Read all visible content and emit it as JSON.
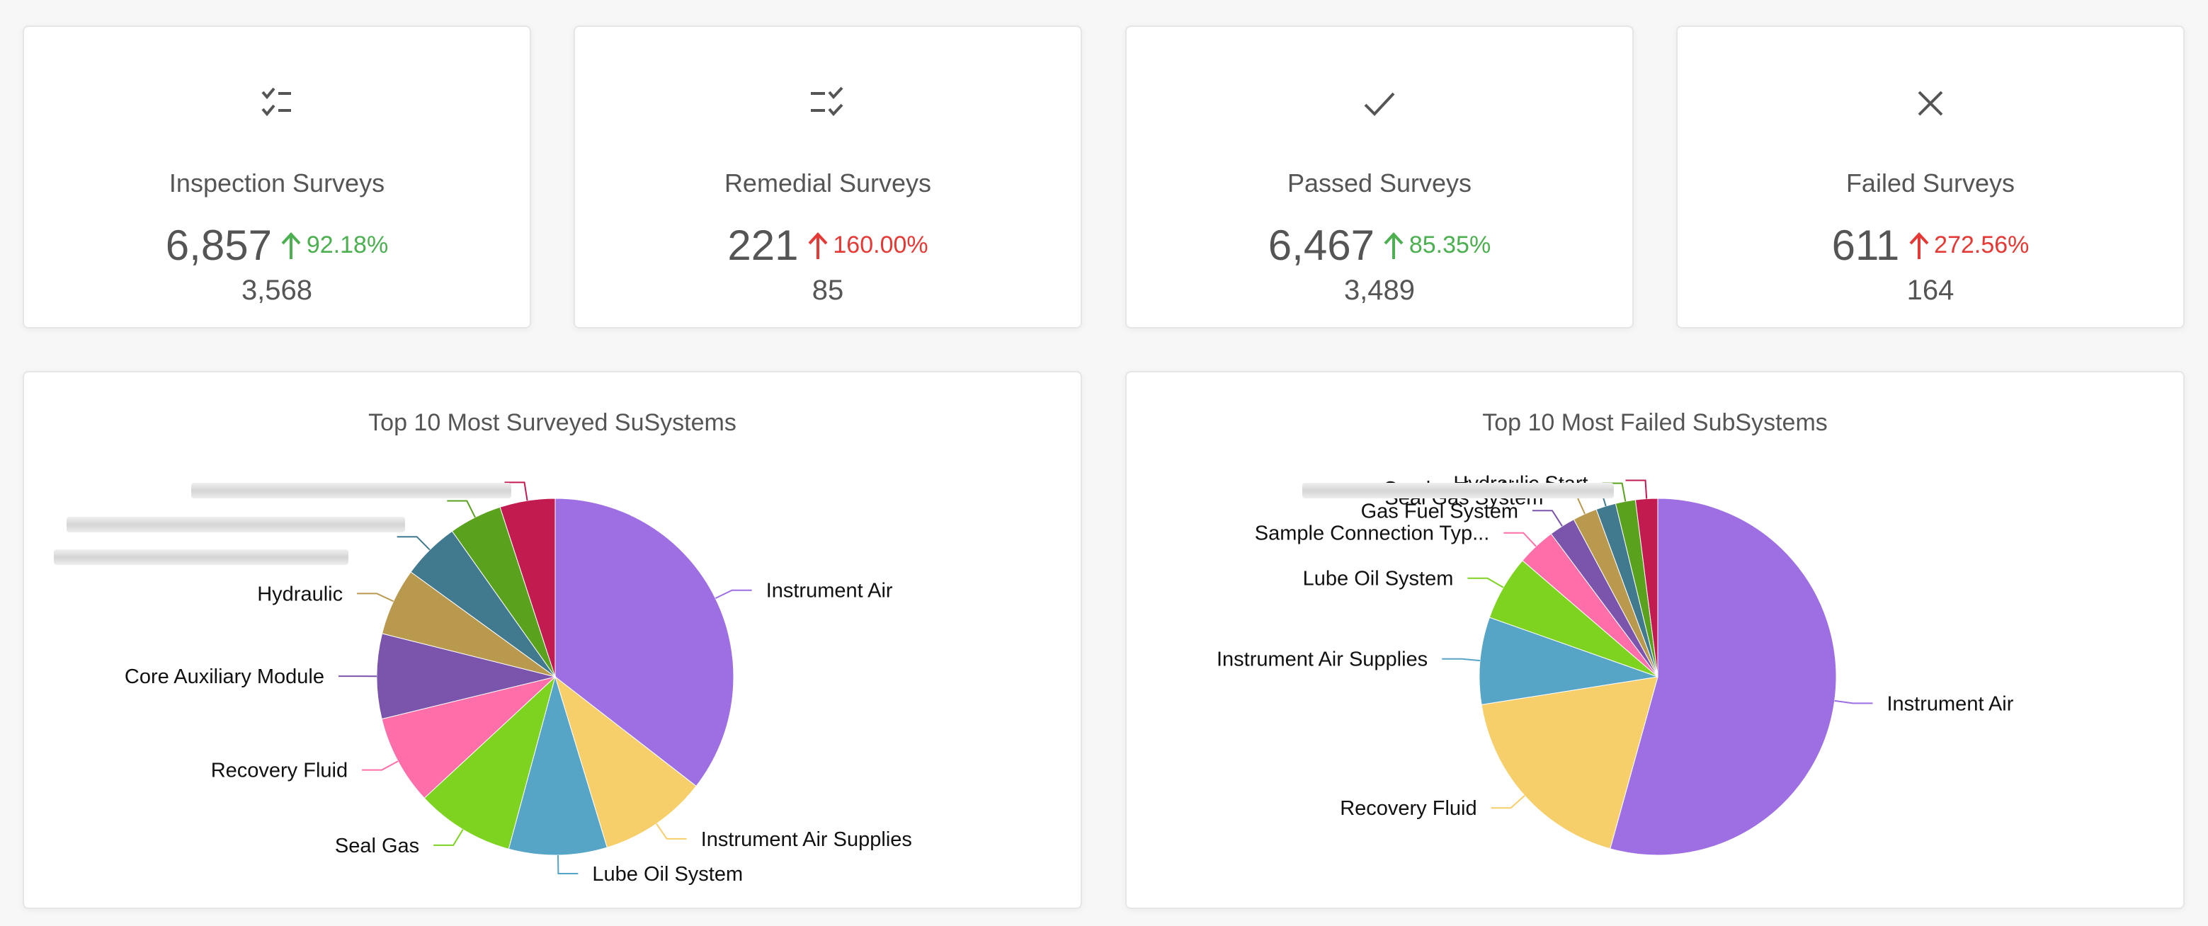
{
  "stats": [
    {
      "id": "inspection",
      "title": "Inspection Surveys",
      "value": "6,857",
      "change": "92.18%",
      "previous": "3,568",
      "trend": "up",
      "trend_color": "#4caf50",
      "icon": "checklist-icon"
    },
    {
      "id": "remedial",
      "title": "Remedial Surveys",
      "value": "221",
      "change": "160.00%",
      "previous": "85",
      "trend": "up",
      "trend_color": "#e53935",
      "icon": "list-check-icon"
    },
    {
      "id": "passed",
      "title": "Passed Surveys",
      "value": "6,467",
      "change": "85.35%",
      "previous": "3,489",
      "trend": "up",
      "trend_color": "#4caf50",
      "icon": "check-icon"
    },
    {
      "id": "failed",
      "title": "Failed Surveys",
      "value": "611",
      "change": "272.56%",
      "previous": "164",
      "trend": "up",
      "trend_color": "#e53935",
      "icon": "close-icon"
    }
  ],
  "chart_data": [
    {
      "type": "pie",
      "title": "Top 10 Most Surveyed SuSystems",
      "slices": [
        {
          "label": "Instrument Air",
          "value": 35.5,
          "color": "#9e6fe3"
        },
        {
          "label": "Instrument Air Supplies",
          "value": 9.8,
          "color": "#f6cf6b"
        },
        {
          "label": "Lube Oil System",
          "value": 8.9,
          "color": "#56a4c6"
        },
        {
          "label": "Seal Gas",
          "value": 8.9,
          "color": "#7ed321"
        },
        {
          "label": "Recovery Fluid",
          "value": 8.1,
          "color": "#fe6ea8"
        },
        {
          "label": "Core Auxiliary Module",
          "value": 7.7,
          "color": "#7b55ab"
        },
        {
          "label": "Hydraulic",
          "value": 6.1,
          "color": "#b9994e"
        },
        {
          "label": "",
          "value": 5.2,
          "color": "#41798f"
        },
        {
          "label": "",
          "value": 4.8,
          "color": "#5aa11e"
        },
        {
          "label": "",
          "value": 5.0,
          "color": "#c21b4f"
        }
      ]
    },
    {
      "type": "pie",
      "title": "Top 10 Most Failed SubSystems",
      "slices": [
        {
          "label": "Instrument Air",
          "value": 54.3,
          "color": "#9e6fe3"
        },
        {
          "label": "Recovery Fluid",
          "value": 18.2,
          "color": "#f6cf6b"
        },
        {
          "label": "Instrument Air Supplies",
          "value": 7.9,
          "color": "#56a4c6"
        },
        {
          "label": "Lube Oil System",
          "value": 5.9,
          "color": "#7ed321"
        },
        {
          "label": "Sample Connection Typ...",
          "value": 3.5,
          "color": "#fe6ea8"
        },
        {
          "label": "Gas Fuel System",
          "value": 2.4,
          "color": "#7b55ab"
        },
        {
          "label": "Seal Gas System",
          "value": 2.2,
          "color": "#b9994e"
        },
        {
          "label": "Combustion Air Inlet",
          "value": 1.8,
          "color": "#41798f"
        },
        {
          "label": "Hydraulic Start",
          "value": 1.8,
          "color": "#5aa11e"
        },
        {
          "label": "",
          "value": 2.0,
          "color": "#c21b4f"
        }
      ]
    }
  ]
}
